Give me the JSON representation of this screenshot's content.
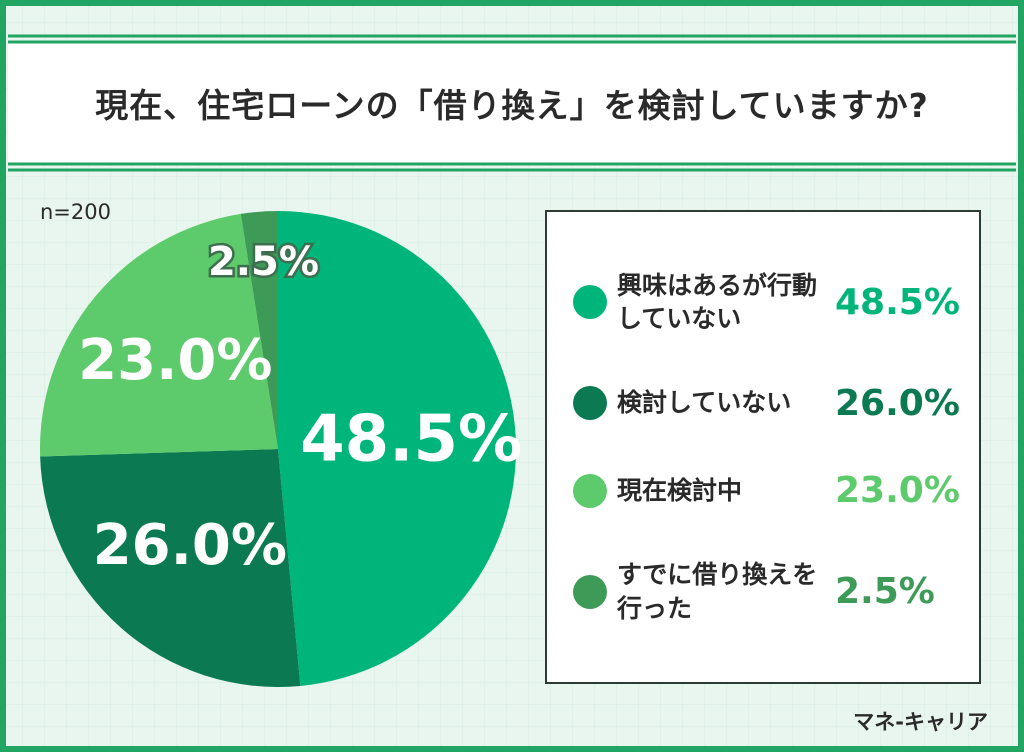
{
  "chart_data": {
    "type": "pie",
    "title": "現在、住宅ローンの「借り換え」を検討していますか?",
    "sample_note": "n=200",
    "source": "マネ-キャリア",
    "categories": [
      "興味はあるが行動していない",
      "検討していない",
      "現在検討中",
      "すでに借り換えを行った"
    ],
    "values": [
      48.5,
      26.0,
      23.0,
      2.5
    ],
    "value_labels": [
      "48.5%",
      "26.0%",
      "23.0%",
      "2.5%"
    ],
    "colors": [
      "#00b57a",
      "#0b7a52",
      "#5dca6c",
      "#3d9a57"
    ]
  }
}
